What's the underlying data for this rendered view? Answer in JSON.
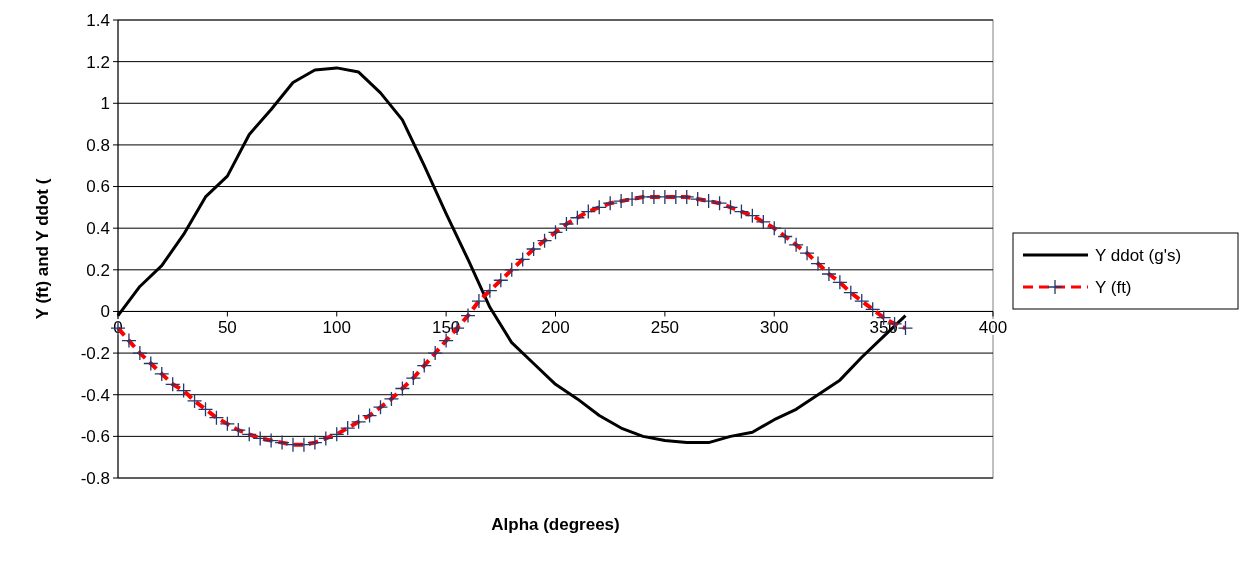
{
  "chart_data": {
    "type": "line",
    "xlabel": "Alpha (degrees)",
    "ylabel": "Y (ft) and Y ddot (",
    "xlim": [
      0,
      400
    ],
    "xticks": [
      0,
      50,
      100,
      150,
      200,
      250,
      300,
      350,
      400
    ],
    "ylim": [
      -0.8,
      1.4
    ],
    "yticks": [
      -0.8,
      -0.6,
      -0.4,
      -0.2,
      0,
      0.2,
      0.4,
      0.6,
      0.8,
      1,
      1.2,
      1.4
    ],
    "grid": "y",
    "legend": "right",
    "series": [
      {
        "name": "Y ddot (g's)",
        "color": "#000000",
        "marker": "none",
        "line_style": "solid",
        "x": [
          0,
          10,
          20,
          30,
          40,
          50,
          60,
          70,
          80,
          90,
          100,
          110,
          120,
          130,
          140,
          150,
          160,
          170,
          180,
          190,
          200,
          210,
          220,
          230,
          240,
          250,
          260,
          270,
          280,
          290,
          300,
          310,
          320,
          330,
          340,
          350,
          360
        ],
        "values": [
          -0.02,
          0.12,
          0.22,
          0.37,
          0.55,
          0.65,
          0.85,
          0.97,
          1.1,
          1.16,
          1.17,
          1.15,
          1.05,
          0.92,
          0.7,
          0.47,
          0.25,
          0.02,
          -0.15,
          -0.25,
          -0.35,
          -0.42,
          -0.5,
          -0.56,
          -0.6,
          -0.62,
          -0.63,
          -0.63,
          -0.6,
          -0.58,
          -0.52,
          -0.47,
          -0.4,
          -0.33,
          -0.22,
          -0.12,
          -0.02
        ]
      },
      {
        "name": "Y (ft)",
        "color": "#ff0000",
        "marker": "cross",
        "line_style": "dashed",
        "x": [
          0,
          5,
          10,
          15,
          20,
          25,
          30,
          35,
          40,
          45,
          50,
          55,
          60,
          65,
          70,
          75,
          80,
          85,
          90,
          95,
          100,
          105,
          110,
          115,
          120,
          125,
          130,
          135,
          140,
          145,
          150,
          155,
          160,
          165,
          170,
          175,
          180,
          185,
          190,
          195,
          200,
          205,
          210,
          215,
          220,
          225,
          230,
          235,
          240,
          245,
          250,
          255,
          260,
          265,
          270,
          275,
          280,
          285,
          290,
          295,
          300,
          305,
          310,
          315,
          320,
          325,
          330,
          335,
          340,
          345,
          350,
          355,
          360
        ],
        "values": [
          -0.08,
          -0.14,
          -0.2,
          -0.25,
          -0.3,
          -0.35,
          -0.38,
          -0.43,
          -0.47,
          -0.51,
          -0.54,
          -0.57,
          -0.59,
          -0.61,
          -0.62,
          -0.63,
          -0.64,
          -0.64,
          -0.63,
          -0.61,
          -0.59,
          -0.56,
          -0.53,
          -0.5,
          -0.46,
          -0.42,
          -0.37,
          -0.32,
          -0.26,
          -0.2,
          -0.14,
          -0.08,
          -0.02,
          0.05,
          0.1,
          0.15,
          0.2,
          0.25,
          0.3,
          0.34,
          0.38,
          0.42,
          0.45,
          0.48,
          0.5,
          0.52,
          0.53,
          0.54,
          0.55,
          0.55,
          0.55,
          0.55,
          0.55,
          0.54,
          0.53,
          0.52,
          0.5,
          0.48,
          0.46,
          0.43,
          0.4,
          0.36,
          0.32,
          0.28,
          0.23,
          0.18,
          0.14,
          0.09,
          0.05,
          0.01,
          -0.03,
          -0.06,
          -0.08
        ]
      }
    ]
  }
}
